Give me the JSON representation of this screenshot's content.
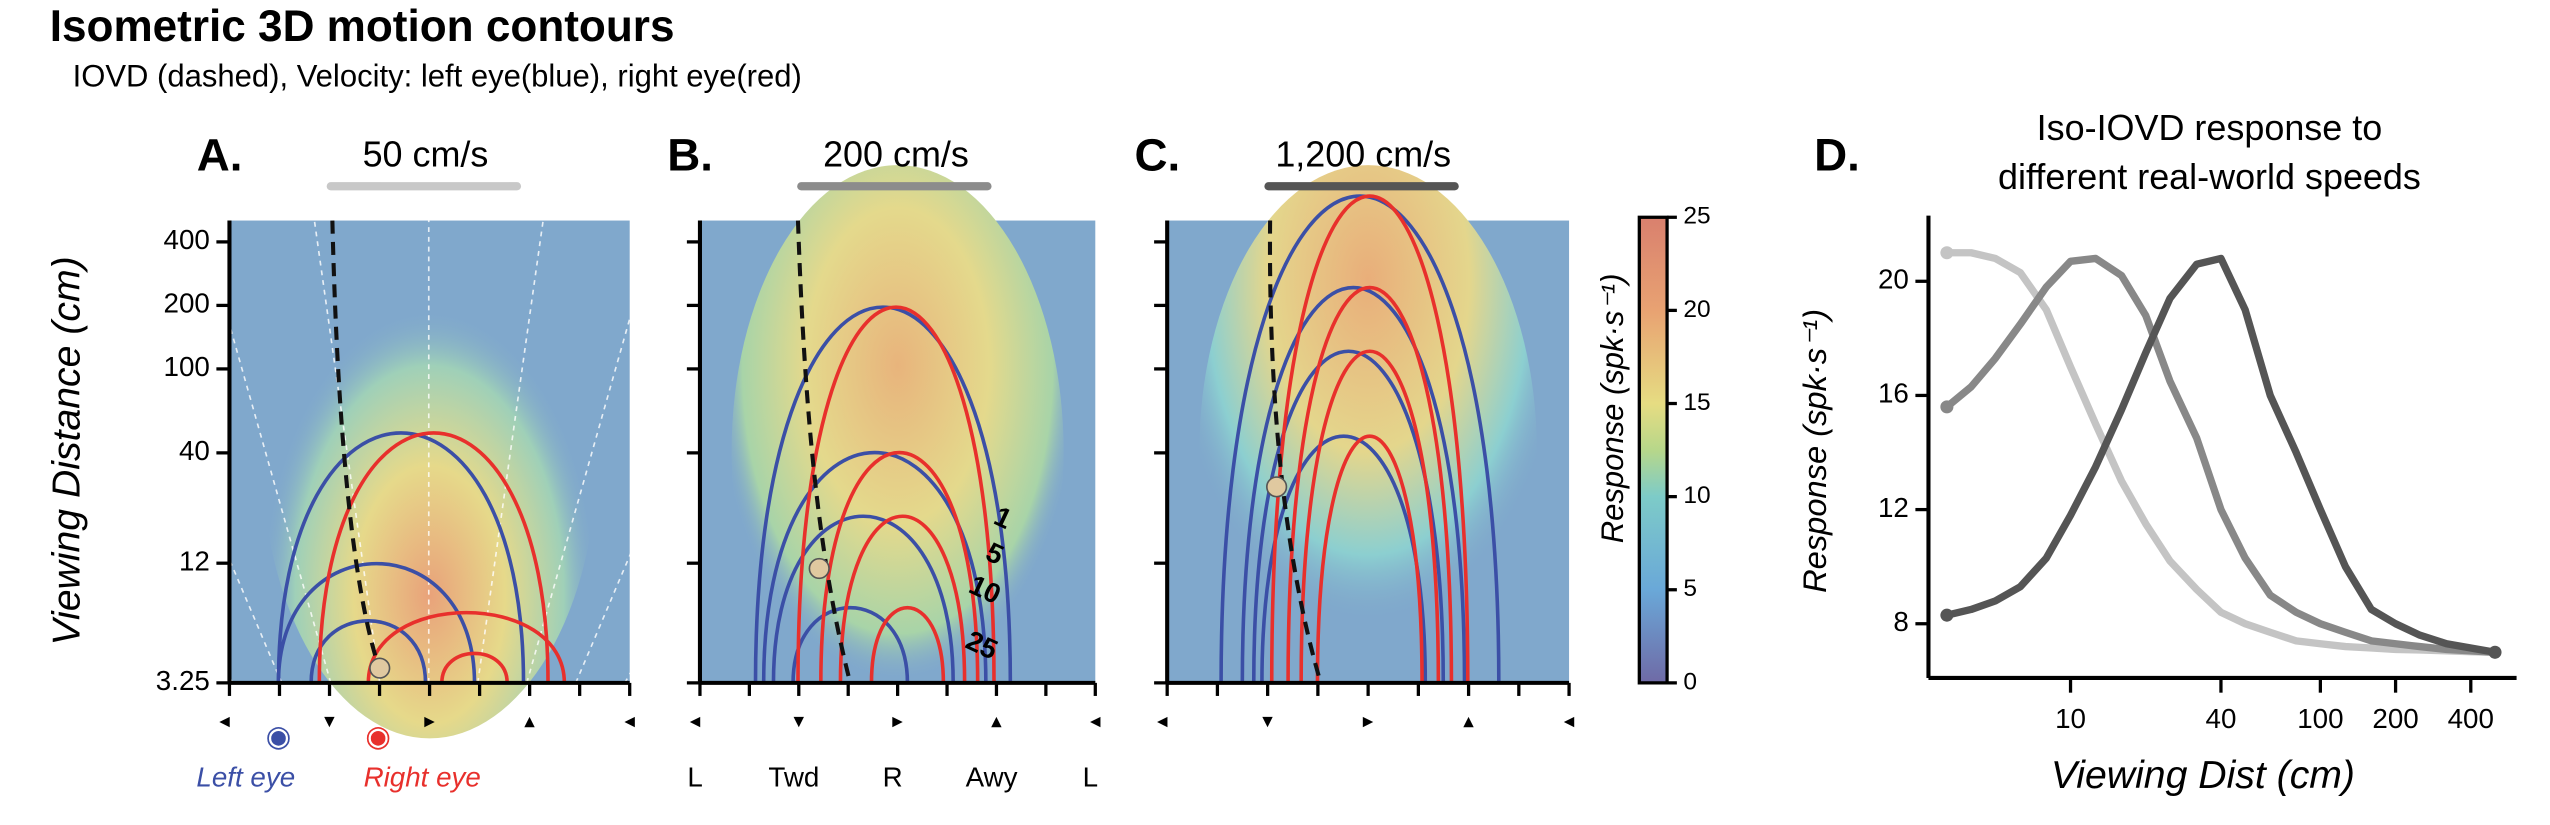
{
  "header": {
    "title": "Isometric 3D motion contours",
    "subtitle": "IOVD (dashed),   Velocity: left eye(blue),  right eye(red)"
  },
  "colorbar": {
    "label": "Response  (spk·s⁻¹)",
    "ylim": [
      0,
      25
    ],
    "yticks": [
      0,
      5,
      10,
      15,
      20,
      25
    ]
  },
  "chart_data": [
    {
      "type": "contour",
      "panel": "A.",
      "speed": "50 cm/s",
      "speed_color": "#c8c8c8",
      "ylabel": "Viewing Distance (cm)",
      "yscale": "log",
      "ylim": [
        3.25,
        505
      ],
      "yticks": [
        400,
        200,
        100,
        40,
        12,
        3.25
      ],
      "xlabels": [
        "Left eye",
        "Right eye"
      ]
    },
    {
      "type": "contour",
      "panel": "B.",
      "speed": "200 cm/s",
      "speed_color": "#8c8c8c",
      "xlabels": [
        "L",
        "Twd",
        "R",
        "Awy",
        "L"
      ],
      "contour_labels": [
        1,
        5,
        10,
        25
      ]
    },
    {
      "type": "contour",
      "panel": "C.",
      "speed": "1,200 cm/s",
      "speed_color": "#555555"
    },
    {
      "type": "line",
      "panel": "D.",
      "title": [
        "Iso-IOVD response to",
        "different real-world speeds"
      ],
      "xlabel": "Viewing Dist (cm)",
      "ylabel": "Response  (spk·s⁻¹)",
      "xscale": "log",
      "xlim": [
        2.7,
        610
      ],
      "xticks": [
        10,
        40,
        100,
        200,
        400
      ],
      "ylim": [
        6.1,
        22.3
      ],
      "yticks": [
        8,
        12,
        16,
        20
      ],
      "x": [
        3.2,
        4,
        5,
        6.3,
        8,
        10,
        12.6,
        16,
        20,
        25,
        32,
        40,
        50,
        63,
        80,
        100,
        126,
        160,
        200,
        250,
        320,
        400,
        500
      ],
      "series": [
        {
          "color": "#c4c4c4",
          "values": [
            21,
            21,
            20.8,
            20.3,
            19,
            17,
            15,
            13,
            11.5,
            10.2,
            9.2,
            8.4,
            8,
            7.7,
            7.4,
            7.3,
            7.2,
            7.15,
            7.1,
            7.08,
            7.05,
            7.02,
            7.0
          ]
        },
        {
          "color": "#888888",
          "values": [
            15.6,
            16.3,
            17.3,
            18.5,
            19.8,
            20.7,
            20.8,
            20.2,
            18.8,
            16.5,
            14.5,
            12,
            10.3,
            9,
            8.4,
            8,
            7.7,
            7.4,
            7.3,
            7.2,
            7.1,
            7.05,
            7.0
          ]
        },
        {
          "color": "#555555",
          "values": [
            8.3,
            8.5,
            8.8,
            9.3,
            10.3,
            11.8,
            13.5,
            15.5,
            17.5,
            19.4,
            20.6,
            20.8,
            19,
            16,
            14,
            12,
            10,
            8.5,
            8,
            7.6,
            7.3,
            7.15,
            7.0
          ]
        }
      ]
    }
  ]
}
